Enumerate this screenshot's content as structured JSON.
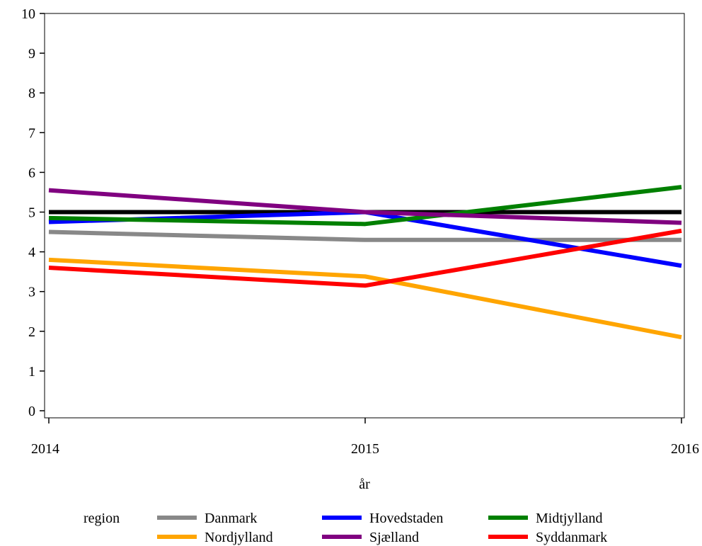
{
  "chart_data": {
    "type": "line",
    "xlabel": "år",
    "ylabel": "",
    "x": [
      2014,
      2015,
      2016
    ],
    "x_ticks": [
      "2014",
      "2015",
      "2016"
    ],
    "ylim": [
      0,
      10
    ],
    "y_ticks": [
      "0",
      "1",
      "2",
      "3",
      "4",
      "5",
      "6",
      "7",
      "8",
      "9",
      "10"
    ],
    "grid": false,
    "reference_line": {
      "y": 5,
      "color": "#000000"
    },
    "legend": {
      "title": "region",
      "placement": "bottom"
    },
    "series": [
      {
        "name": "Danmark",
        "color": "#888888",
        "values": [
          4.5,
          4.3,
          4.3
        ]
      },
      {
        "name": "Hovedstaden",
        "color": "#0000ff",
        "values": [
          4.75,
          5.0,
          3.65
        ]
      },
      {
        "name": "Midtjylland",
        "color": "#008000",
        "values": [
          4.85,
          4.7,
          5.63
        ]
      },
      {
        "name": "Nordjylland",
        "color": "#ffa500",
        "values": [
          3.8,
          3.38,
          1.85
        ]
      },
      {
        "name": "Sjælland",
        "color": "#800080",
        "values": [
          5.55,
          5.0,
          4.73
        ]
      },
      {
        "name": "Syddanmark",
        "color": "#ff0000",
        "values": [
          3.6,
          3.15,
          4.53
        ]
      }
    ]
  }
}
